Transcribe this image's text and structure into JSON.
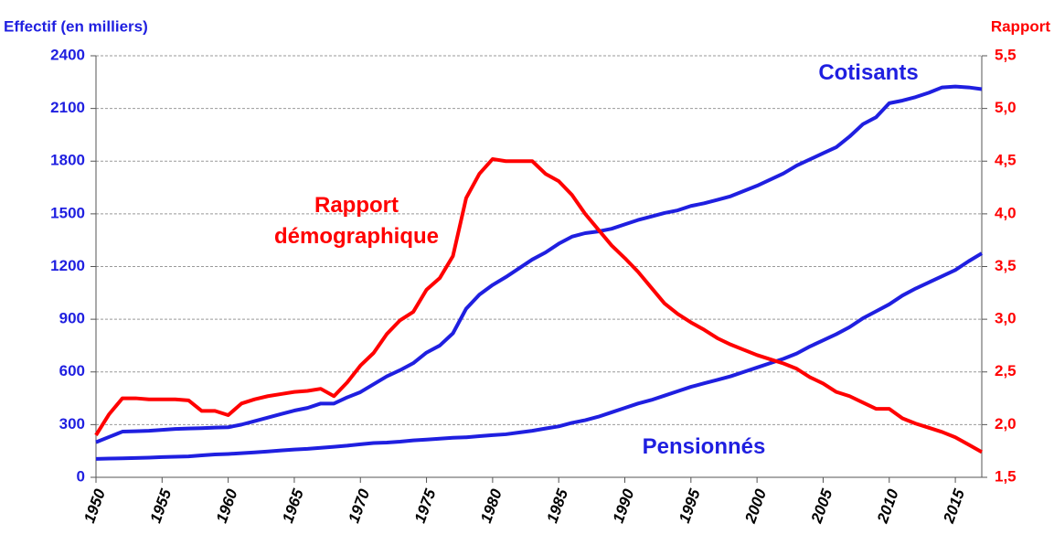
{
  "chart_data": {
    "type": "line",
    "y_label": "Effectif (en milliers)",
    "y2_label": "Rapport",
    "x": [
      1950,
      1951,
      1952,
      1953,
      1954,
      1955,
      1956,
      1957,
      1958,
      1959,
      1960,
      1961,
      1962,
      1963,
      1964,
      1965,
      1966,
      1967,
      1968,
      1969,
      1970,
      1971,
      1972,
      1973,
      1974,
      1975,
      1976,
      1977,
      1978,
      1979,
      1980,
      1981,
      1982,
      1983,
      1984,
      1985,
      1986,
      1987,
      1988,
      1989,
      1990,
      1991,
      1992,
      1993,
      1994,
      1995,
      1996,
      1997,
      1998,
      1999,
      2000,
      2001,
      2002,
      2003,
      2004,
      2005,
      2006,
      2007,
      2008,
      2009,
      2010,
      2011,
      2012,
      2013,
      2014,
      2015,
      2016,
      2017
    ],
    "series": [
      {
        "name": "Cotisants",
        "color": "#1f1fe0",
        "values": [
          200,
          230,
          260,
          262,
          265,
          270,
          275,
          278,
          280,
          283,
          285,
          300,
          320,
          340,
          360,
          380,
          395,
          420,
          420,
          455,
          485,
          530,
          575,
          610,
          650,
          710,
          750,
          820,
          960,
          1040,
          1095,
          1140,
          1190,
          1240,
          1280,
          1330,
          1370,
          1390,
          1400,
          1415,
          1440,
          1465,
          1485,
          1505,
          1520,
          1545,
          1560,
          1580,
          1600,
          1630,
          1660,
          1695,
          1730,
          1775,
          1810,
          1845,
          1880,
          1940,
          2010,
          2050,
          2130,
          2145,
          2165,
          2190,
          2220,
          2225,
          2220,
          2210
        ]
      },
      {
        "name": "Pensionnés",
        "color": "#1f1fe0",
        "values": [
          105,
          107,
          108,
          110,
          112,
          115,
          117,
          119,
          125,
          130,
          133,
          137,
          142,
          147,
          153,
          158,
          162,
          168,
          174,
          180,
          188,
          195,
          198,
          203,
          210,
          215,
          220,
          225,
          228,
          234,
          240,
          245,
          255,
          265,
          278,
          290,
          310,
          325,
          345,
          370,
          395,
          420,
          440,
          465,
          490,
          515,
          535,
          555,
          575,
          600,
          625,
          650,
          675,
          705,
          745,
          780,
          815,
          855,
          905,
          945,
          985,
          1035,
          1075,
          1110,
          1145,
          1180,
          1230,
          1275
        ]
      },
      {
        "name": "Rapport démographique",
        "color": "#ff0000",
        "axis": "y2",
        "values": [
          1.9,
          2.1,
          2.25,
          2.25,
          2.24,
          2.24,
          2.24,
          2.23,
          2.13,
          2.13,
          2.09,
          2.2,
          2.24,
          2.27,
          2.29,
          2.31,
          2.32,
          2.34,
          2.27,
          2.4,
          2.56,
          2.68,
          2.86,
          2.99,
          3.07,
          3.28,
          3.39,
          3.6,
          4.15,
          4.38,
          4.52,
          4.5,
          4.5,
          4.5,
          4.38,
          4.31,
          4.18,
          4.0,
          3.85,
          3.7,
          3.58,
          3.45,
          3.3,
          3.15,
          3.05,
          2.97,
          2.9,
          2.82,
          2.76,
          2.71,
          2.66,
          2.62,
          2.58,
          2.53,
          2.45,
          2.39,
          2.31,
          2.27,
          2.21,
          2.15,
          2.15,
          2.06,
          2.01,
          1.97,
          1.93,
          1.88,
          1.81,
          1.74
        ]
      }
    ],
    "xlim": [
      1950,
      2017
    ],
    "xticks": [
      1950,
      1955,
      1960,
      1965,
      1970,
      1975,
      1980,
      1985,
      1990,
      1995,
      2000,
      2005,
      2010,
      2015
    ],
    "ylim": [
      0,
      2400
    ],
    "yticks": [
      0,
      300,
      600,
      900,
      1200,
      1500,
      1800,
      2100,
      2400
    ],
    "y2lim": [
      1.5,
      5.5
    ],
    "y2ticks": [
      {
        "value": 1.5,
        "label": "1,5"
      },
      {
        "value": 2.0,
        "label": "2,0"
      },
      {
        "value": 2.5,
        "label": "2,5"
      },
      {
        "value": 3.0,
        "label": "3,0"
      },
      {
        "value": 3.5,
        "label": "3,5"
      },
      {
        "value": 4.0,
        "label": "4,0"
      },
      {
        "value": 4.5,
        "label": "4,5"
      },
      {
        "value": 5.0,
        "label": "5,0"
      },
      {
        "value": 5.5,
        "label": "5,5"
      }
    ],
    "grid": true
  }
}
